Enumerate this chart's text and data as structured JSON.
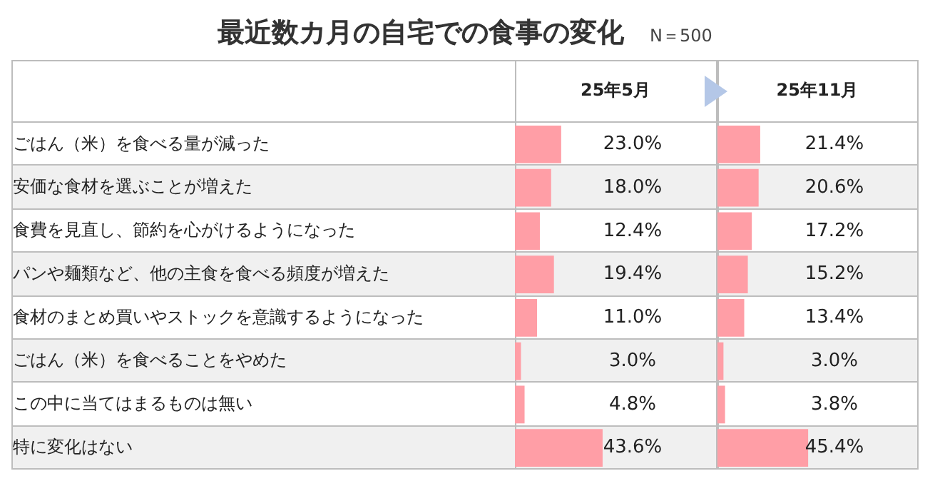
{
  "chart_data": [
    {
      "type": "bar",
      "orientation": "horizontal",
      "title": "最近数カ月の自宅での食事の変化",
      "subtitle": "N＝500",
      "tick_labels": "y",
      "categories": [
        "ごはん（米）を食べる量が減った",
        "安価な食材を選ぶことが増えた",
        "食費を見直し、節約を心がけるようになった",
        "パンや麺類など、他の主食を食べる頻度が増えた",
        "食材のまとめ買いやストックを意識するようになった",
        "ごはん（米）を食べることをやめた",
        "この中に当てはまるものは無い",
        "特に変化はない"
      ],
      "xlim": [
        0,
        100
      ],
      "series": [
        {
          "name": "25年5月",
          "color": "#ff9ea6",
          "values": [
            23.0,
            18.0,
            12.4,
            19.4,
            11.0,
            3.0,
            4.8,
            43.6
          ],
          "value_labels": [
            "23.0%",
            "18.0%",
            "12.4%",
            "19.4%",
            "11.0%",
            "3.0%",
            "4.8%",
            "43.6%"
          ]
        }
      ]
    },
    {
      "type": "bar",
      "orientation": "horizontal",
      "tick_labels": false,
      "categories": [
        null,
        null,
        null,
        null,
        null,
        null,
        null,
        null
      ],
      "xlim": [
        0,
        100
      ],
      "series": [
        {
          "name": "25年11月",
          "color": "#ff9ea6",
          "values": [
            21.4,
            20.6,
            17.2,
            15.2,
            13.4,
            3.0,
            3.8,
            45.4
          ],
          "value_labels": [
            "21.4%",
            "20.6%",
            "17.2%",
            "15.2%",
            "13.4%",
            "3.0%",
            "3.8%",
            "45.4%"
          ]
        }
      ]
    }
  ]
}
